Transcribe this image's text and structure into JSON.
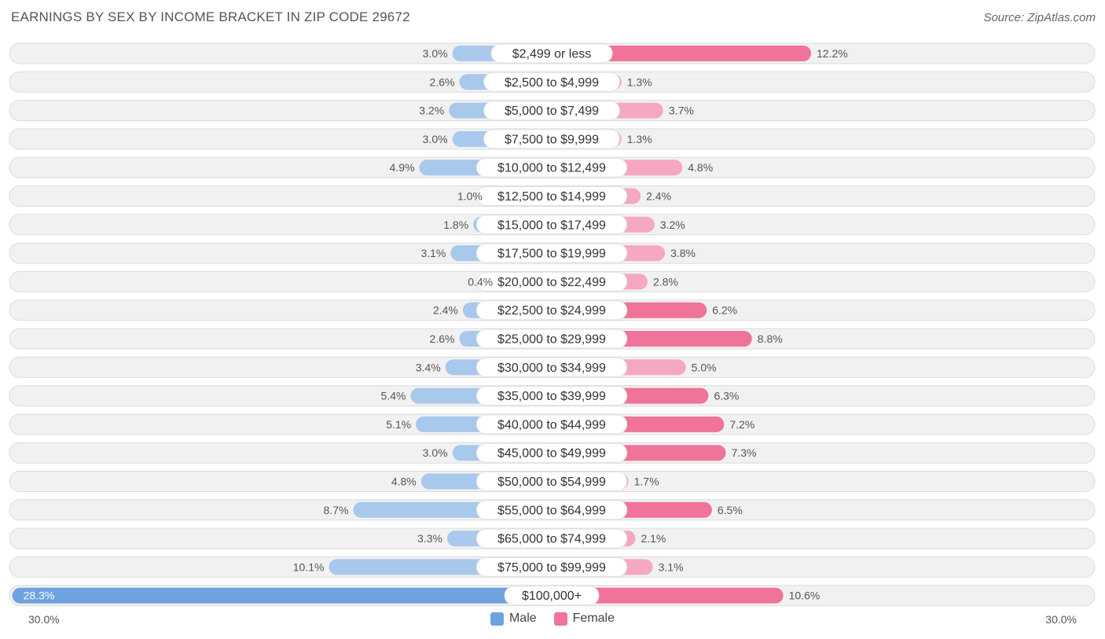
{
  "header": {
    "title": "EARNINGS BY SEX BY INCOME BRACKET IN ZIP CODE 29672",
    "source": "Source: ZipAtlas.com"
  },
  "axis": {
    "left_label": "30.0%",
    "right_label": "30.0%"
  },
  "legend": {
    "male_label": "Male",
    "female_label": "Female"
  },
  "colors": {
    "male": "#6fa3df",
    "male_light": "#a8c8ec",
    "female": "#f07399",
    "female_light": "#f6a8c0",
    "row_bg": "#f1f1f1",
    "row_border": "#dcdcdc"
  },
  "chart_data": {
    "type": "bar",
    "orientation": "diverging-horizontal",
    "title": "EARNINGS BY SEX BY INCOME BRACKET IN ZIP CODE 29672",
    "categories": [
      "$2,499 or less",
      "$2,500 to $4,999",
      "$5,000 to $7,499",
      "$7,500 to $9,999",
      "$10,000 to $12,499",
      "$12,500 to $14,999",
      "$15,000 to $17,499",
      "$17,500 to $19,999",
      "$20,000 to $22,499",
      "$22,500 to $24,999",
      "$25,000 to $29,999",
      "$30,000 to $34,999",
      "$35,000 to $39,999",
      "$40,000 to $44,999",
      "$45,000 to $49,999",
      "$50,000 to $54,999",
      "$55,000 to $64,999",
      "$65,000 to $74,999",
      "$75,000 to $99,999",
      "$100,000+"
    ],
    "series": [
      {
        "name": "Male",
        "values": [
          3.0,
          2.6,
          3.2,
          3.0,
          4.9,
          1.0,
          1.8,
          3.1,
          0.4,
          2.4,
          2.6,
          3.4,
          5.4,
          5.1,
          3.0,
          4.8,
          8.7,
          3.3,
          10.1,
          28.3
        ]
      },
      {
        "name": "Female",
        "values": [
          12.2,
          1.3,
          3.7,
          1.3,
          4.8,
          2.4,
          3.2,
          3.8,
          2.8,
          6.2,
          8.8,
          5.0,
          6.3,
          7.2,
          7.3,
          1.7,
          6.5,
          2.1,
          3.1,
          10.6
        ]
      }
    ],
    "value_labels": {
      "male": [
        "3.0%",
        "2.6%",
        "3.2%",
        "3.0%",
        "4.9%",
        "1.0%",
        "1.8%",
        "3.1%",
        "0.4%",
        "2.4%",
        "2.6%",
        "3.4%",
        "5.4%",
        "5.1%",
        "3.0%",
        "4.8%",
        "8.7%",
        "3.3%",
        "10.1%",
        "28.3%"
      ],
      "female": [
        "12.2%",
        "1.3%",
        "3.7%",
        "1.3%",
        "4.8%",
        "2.4%",
        "3.2%",
        "3.8%",
        "2.8%",
        "6.2%",
        "8.8%",
        "5.0%",
        "6.3%",
        "7.2%",
        "7.3%",
        "1.7%",
        "6.5%",
        "2.1%",
        "3.1%",
        "10.6%"
      ]
    },
    "xlim": [
      -30,
      30
    ],
    "unit": "%"
  }
}
